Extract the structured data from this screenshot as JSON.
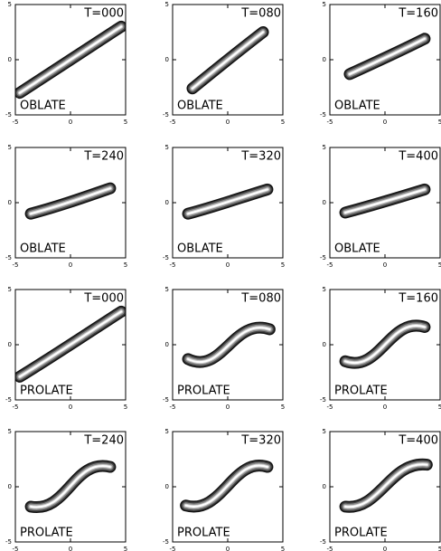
{
  "axis": {
    "ticks": [
      -5,
      0,
      5
    ]
  },
  "panels": [
    {
      "time": "T=000",
      "shape": "OBLATE"
    },
    {
      "time": "T=080",
      "shape": "OBLATE"
    },
    {
      "time": "T=160",
      "shape": "OBLATE"
    },
    {
      "time": "T=240",
      "shape": "OBLATE"
    },
    {
      "time": "T=320",
      "shape": "OBLATE"
    },
    {
      "time": "T=400",
      "shape": "OBLATE"
    },
    {
      "time": "T=000",
      "shape": "PROLATE"
    },
    {
      "time": "T=080",
      "shape": "PROLATE"
    },
    {
      "time": "T=160",
      "shape": "PROLATE"
    },
    {
      "time": "T=240",
      "shape": "PROLATE"
    },
    {
      "time": "T=320",
      "shape": "PROLATE"
    },
    {
      "time": "T=400",
      "shape": "PROLATE"
    }
  ]
}
